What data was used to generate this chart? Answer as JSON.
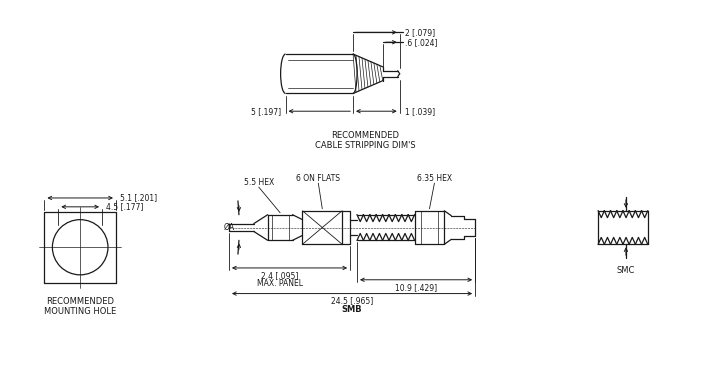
{
  "bg_color": "#ffffff",
  "line_color": "#1a1a1a",
  "title_text": "RECOMMENDED\nCABLE STRIPPING DIM'S",
  "mounting_hole_text": "RECOMMENDED\nMOUNTING HOLE",
  "smb_label": "SMB",
  "smc_label": "SMC",
  "font_size_label": 6.0,
  "font_size_dim": 5.5
}
